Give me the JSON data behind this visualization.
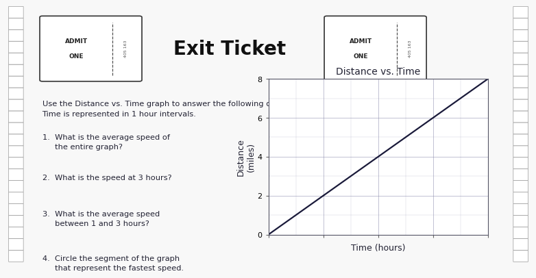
{
  "title": "Distance vs. Time",
  "xlabel": "Time (hours)",
  "ylabel": "Distance\n(miles)",
  "segments": [
    {
      "x": [
        0,
        1
      ],
      "y": [
        0,
        2
      ]
    },
    {
      "x": [
        1,
        4
      ],
      "y": [
        2,
        8
      ]
    }
  ],
  "line_color": "#1a1a3a",
  "xlim": [
    0,
    4
  ],
  "ylim": [
    0,
    8
  ],
  "yticks": [
    0,
    2,
    4,
    6,
    8
  ],
  "grid_color": "#8888aa",
  "grid_alpha": 0.6,
  "page_bg": "#f0ede8",
  "white_bg": "#f8f8f8",
  "title_fontsize": 10,
  "axis_label_fontsize": 9,
  "main_title": "Exit Ticket",
  "ticket_number": "405 163",
  "instructions": "Use the Distance vs. Time graph to answer the following questions.\nTime is represented in 1 hour intervals.",
  "questions": [
    "1.  What is the average speed of\n     the entire graph?",
    "2.  What is the speed at 3 hours?",
    "3.  What is the average speed\n     between 1 and 3 hours?",
    "4.  Circle the segment of the graph\n     that represent the fastest speed."
  ],
  "text_color": "#222233",
  "border_dark": "#444444",
  "ticket_bg": "#ffffff"
}
